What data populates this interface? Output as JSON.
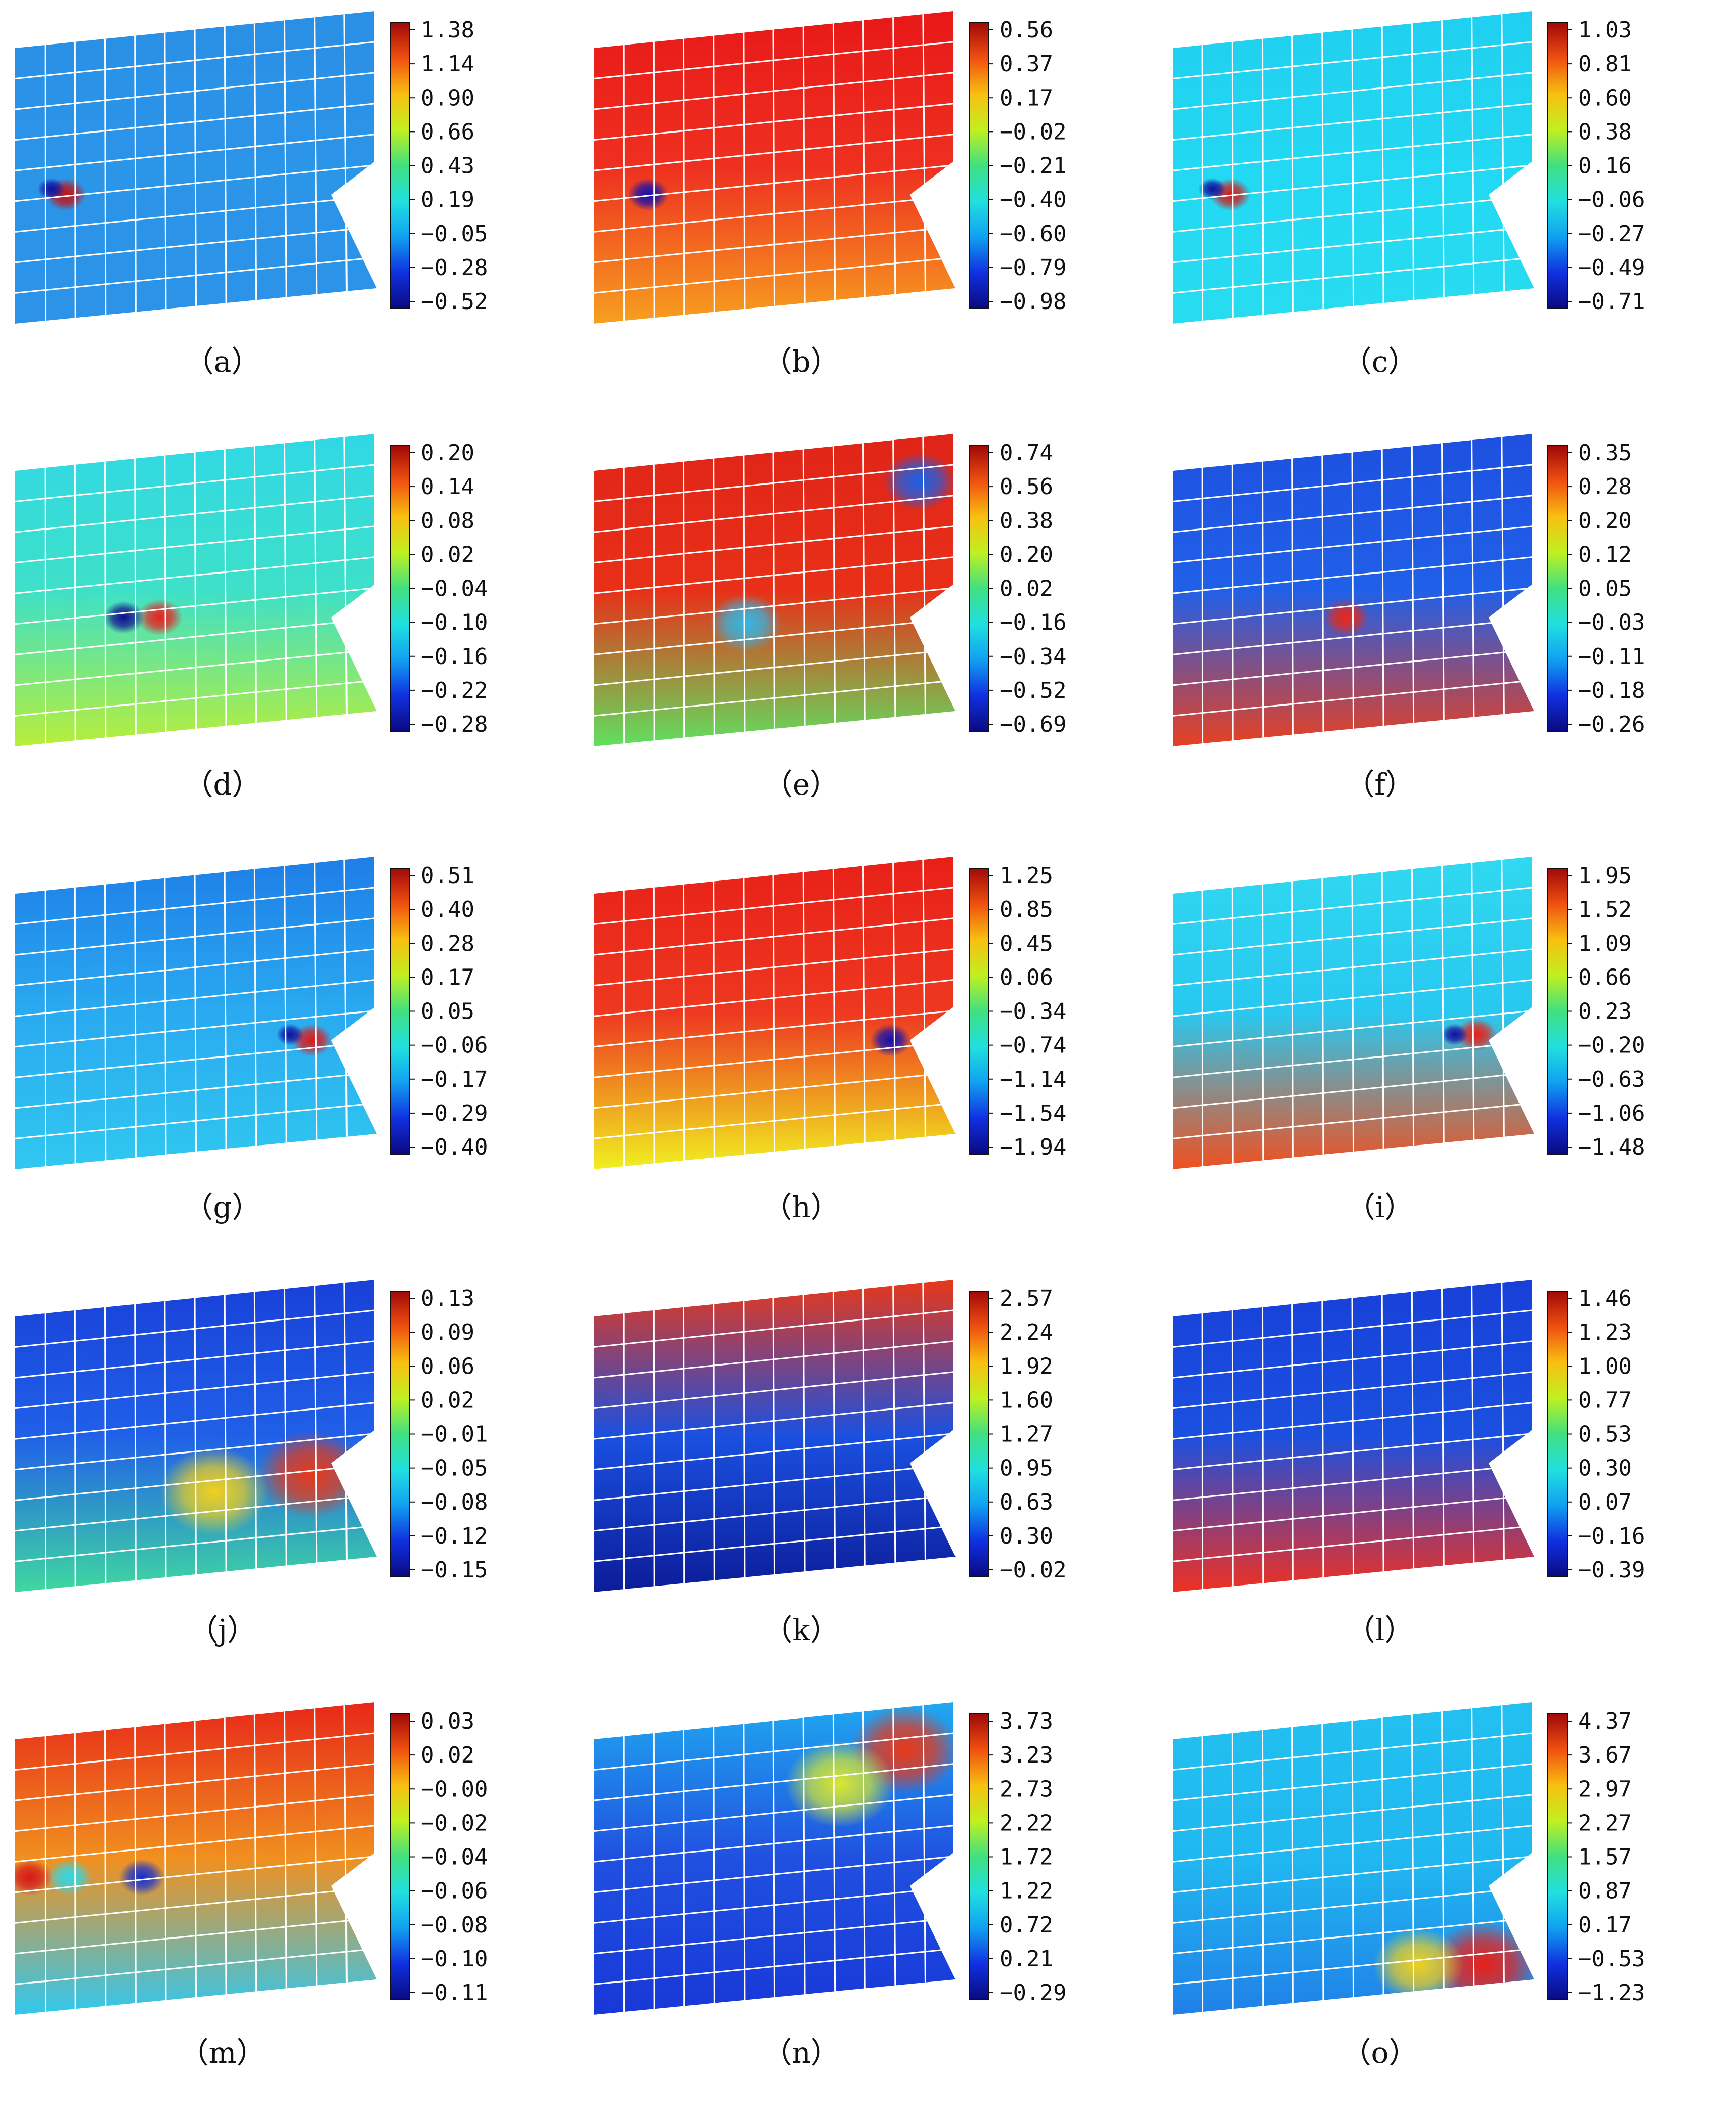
{
  "panels": [
    {
      "label": "（a）",
      "ticks": [
        "1.38",
        "1.14",
        "0.90",
        "0.66",
        "0.43",
        "0.19",
        "−0.05",
        "−0.28",
        "−0.52"
      ],
      "base": "#2b95e8",
      "top": "#2a8fe6",
      "bottom": "#2c93e8",
      "blobs": [
        {
          "u": 0.14,
          "v": 0.58,
          "r": 0.045,
          "color": "#c81010"
        },
        {
          "u": 0.1,
          "v": 0.56,
          "r": 0.03,
          "color": "#1010a0"
        }
      ]
    },
    {
      "label": "（b）",
      "ticks": [
        "0.56",
        "0.37",
        "0.17",
        "−0.02",
        "−0.21",
        "−0.40",
        "−0.60",
        "−0.79",
        "−0.98"
      ],
      "base": "#ee3020",
      "top": "#e81818",
      "bottom": "#f7a020",
      "blobs": [
        {
          "u": 0.15,
          "v": 0.58,
          "r": 0.045,
          "color": "#1010b0"
        }
      ]
    },
    {
      "label": "（c）",
      "ticks": [
        "1.03",
        "0.81",
        "0.60",
        "0.38",
        "0.16",
        "−0.06",
        "−0.27",
        "−0.49",
        "−0.71"
      ],
      "base": "#22d8f2",
      "top": "#20cff0",
      "bottom": "#28dcf0",
      "blobs": [
        {
          "u": 0.16,
          "v": 0.58,
          "r": 0.045,
          "color": "#d81818"
        },
        {
          "u": 0.11,
          "v": 0.56,
          "r": 0.03,
          "color": "#1010a0"
        }
      ]
    },
    {
      "label": "（d）",
      "ticks": [
        "0.20",
        "0.14",
        "0.08",
        "0.02",
        "−0.04",
        "−0.10",
        "−0.16",
        "−0.22",
        "−0.28"
      ],
      "base": "#3ee0c8",
      "top": "#30d8e6",
      "bottom": "#b8ee3a",
      "blobs": [
        {
          "u": 0.4,
          "v": 0.58,
          "r": 0.05,
          "color": "#e82020"
        },
        {
          "u": 0.3,
          "v": 0.58,
          "r": 0.045,
          "color": "#101090"
        }
      ]
    },
    {
      "label": "（e）",
      "ticks": [
        "0.74",
        "0.56",
        "0.38",
        "0.20",
        "0.02",
        "−0.16",
        "−0.34",
        "−0.52",
        "−0.69"
      ],
      "base": "#e83018",
      "top": "#e02418",
      "bottom": "#60e060",
      "blobs": [
        {
          "u": 0.42,
          "v": 0.6,
          "r": 0.08,
          "color": "#30b8e8"
        },
        {
          "u": 0.9,
          "v": 0.1,
          "r": 0.08,
          "color": "#1a60e8"
        }
      ]
    },
    {
      "label": "（f）",
      "ticks": [
        "0.35",
        "0.28",
        "0.20",
        "0.12",
        "0.05",
        "−0.03",
        "−0.11",
        "−0.18",
        "−0.26"
      ],
      "base": "#2060e8",
      "top": "#1e50e0",
      "bottom": "#e84020",
      "blobs": [
        {
          "u": 0.48,
          "v": 0.58,
          "r": 0.05,
          "color": "#e82818"
        }
      ]
    },
    {
      "label": "（g）",
      "ticks": [
        "0.51",
        "0.40",
        "0.28",
        "0.17",
        "0.05",
        "−0.06",
        "−0.17",
        "−0.29",
        "−0.40"
      ],
      "base": "#2aaaf0",
      "top": "#1e7ee8",
      "bottom": "#30c8f0",
      "blobs": [
        {
          "u": 0.82,
          "v": 0.58,
          "r": 0.045,
          "color": "#e01818"
        },
        {
          "u": 0.76,
          "v": 0.56,
          "r": 0.03,
          "color": "#1010a0"
        }
      ]
    },
    {
      "label": "（h）",
      "ticks": [
        "1.25",
        "0.85",
        "0.45",
        "0.06",
        "−0.34",
        "−0.74",
        "−1.14",
        "−1.54",
        "−1.94"
      ],
      "base": "#ee3820",
      "top": "#e82018",
      "bottom": "#f0f020",
      "blobs": [
        {
          "u": 0.82,
          "v": 0.58,
          "r": 0.045,
          "color": "#1010b0"
        }
      ]
    },
    {
      "label": "（i）",
      "ticks": [
        "1.95",
        "1.52",
        "1.09",
        "0.66",
        "0.23",
        "−0.20",
        "−0.63",
        "−1.06",
        "−1.48"
      ],
      "base": "#28c8f0",
      "top": "#30d8f0",
      "bottom": "#f05020",
      "blobs": [
        {
          "u": 0.84,
          "v": 0.56,
          "r": 0.045,
          "color": "#e82018"
        },
        {
          "u": 0.78,
          "v": 0.56,
          "r": 0.03,
          "color": "#1010a0"
        }
      ]
    },
    {
      "label": "（j）",
      "ticks": [
        "0.13",
        "0.09",
        "0.06",
        "0.02",
        "−0.01",
        "−0.05",
        "−0.08",
        "−0.12",
        "−0.15"
      ],
      "base": "#2060e8",
      "top": "#1840d8",
      "bottom": "#40d8a0",
      "blobs": [
        {
          "u": 0.82,
          "v": 0.62,
          "r": 0.12,
          "color": "#e83818"
        },
        {
          "u": 0.55,
          "v": 0.68,
          "r": 0.12,
          "color": "#f0d020"
        }
      ]
    },
    {
      "label": "（k）",
      "ticks": [
        "2.57",
        "2.24",
        "1.92",
        "1.60",
        "1.27",
        "0.95",
        "0.63",
        "0.30",
        "−0.02"
      ],
      "base": "#1a50e0",
      "top": "#e83818",
      "bottom": "#0c1c98",
      "blobs": []
    },
    {
      "label": "（l）",
      "ticks": [
        "1.46",
        "1.23",
        "1.00",
        "0.77",
        "0.53",
        "0.30",
        "0.07",
        "−0.16",
        "−0.39"
      ],
      "base": "#1a50e0",
      "top": "#1840d8",
      "bottom": "#f03020",
      "blobs": []
    },
    {
      "label": "（m）",
      "ticks": [
        "0.03",
        "0.02",
        "−0.00",
        "−0.02",
        "−0.04",
        "−0.06",
        "−0.08",
        "−0.10",
        "−0.11"
      ],
      "base": "#f09020",
      "top": "#e82818",
      "bottom": "#30c8f0",
      "blobs": [
        {
          "u": 0.35,
          "v": 0.55,
          "r": 0.05,
          "color": "#1830d0"
        },
        {
          "u": 0.15,
          "v": 0.55,
          "r": 0.05,
          "color": "#30d8e8"
        },
        {
          "u": 0.04,
          "v": 0.55,
          "r": 0.05,
          "color": "#d81818"
        }
      ]
    },
    {
      "label": "（n）",
      "ticks": [
        "3.73",
        "3.23",
        "2.73",
        "2.22",
        "1.72",
        "1.22",
        "0.72",
        "0.21",
        "−0.29"
      ],
      "base": "#2050e0",
      "top": "#20a8f0",
      "bottom": "#1838d8",
      "blobs": [
        {
          "u": 0.86,
          "v": 0.1,
          "r": 0.12,
          "color": "#e83818"
        },
        {
          "u": 0.68,
          "v": 0.22,
          "r": 0.12,
          "color": "#d8e830"
        }
      ]
    },
    {
      "label": "（o）",
      "ticks": [
        "4.37",
        "3.67",
        "2.97",
        "2.27",
        "1.57",
        "0.87",
        "0.17",
        "−0.53",
        "−1.23"
      ],
      "base": "#20b8f0",
      "top": "#22c0f0",
      "bottom": "#2080e8",
      "blobs": [
        {
          "u": 0.86,
          "v": 0.86,
          "r": 0.12,
          "color": "#e82018"
        },
        {
          "u": 0.68,
          "v": 0.86,
          "r": 0.1,
          "color": "#f0d020"
        }
      ]
    }
  ]
}
